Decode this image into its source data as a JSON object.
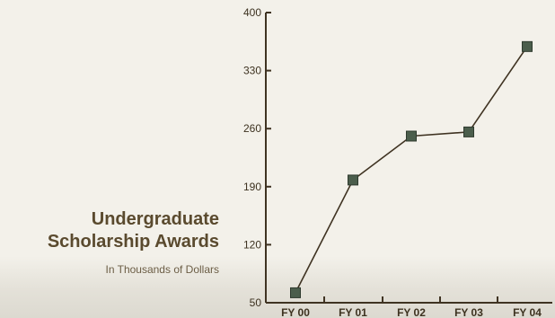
{
  "chart_data": {
    "type": "line",
    "title": "Undergraduate Scholarship Awards",
    "subtitle": "In Thousands of Dollars",
    "categories": [
      "FY 00",
      "FY 01",
      "FY 02",
      "FY 03",
      "FY 04"
    ],
    "values": [
      62,
      198,
      251,
      256,
      359
    ],
    "yticks": [
      50,
      120,
      190,
      260,
      330,
      400
    ],
    "ylim": [
      50,
      400
    ],
    "grid": false,
    "colors": {
      "line": "#3f3322",
      "marker": "#4b5e4c",
      "marker_edge": "#2e3a2e",
      "axis": "#3f3322"
    }
  }
}
